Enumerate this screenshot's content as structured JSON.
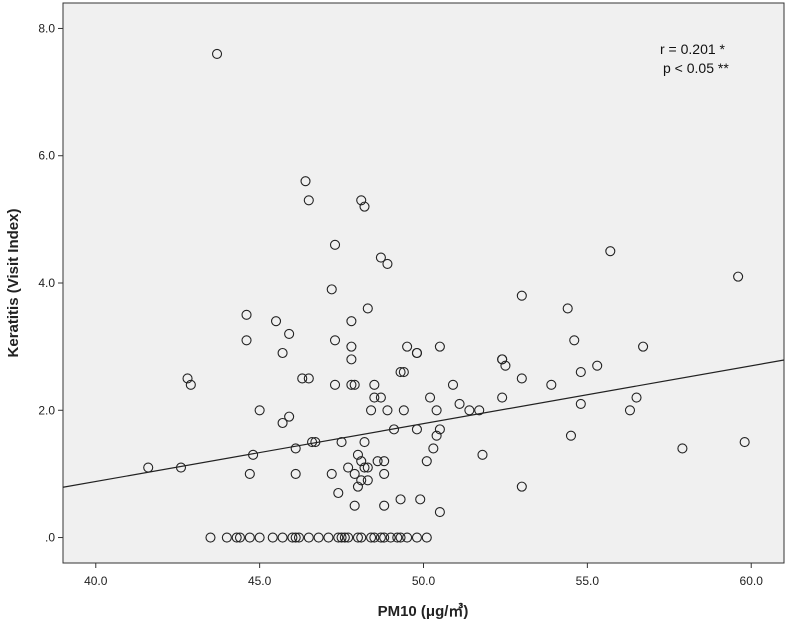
{
  "chart_data": {
    "type": "scatter",
    "title": "",
    "xlabel": "PM10 (μg/㎥)",
    "ylabel": "Keratitis (Visit Index)",
    "xlim": [
      39.0,
      61.0
    ],
    "ylim": [
      -0.4,
      8.4
    ],
    "xticks": [
      40.0,
      45.0,
      50.0,
      55.0,
      60.0
    ],
    "xtick_labels": [
      "40.0",
      "45.0",
      "50.0",
      "55.0",
      "60.0"
    ],
    "yticks": [
      0.0,
      2.0,
      4.0,
      6.0,
      8.0
    ],
    "ytick_labels": [
      ".0",
      "2.0",
      "4.0",
      "6.0",
      "8.0"
    ],
    "grid": false,
    "annotations": [
      "r = 0.201 *",
      "p < 0.05 **"
    ],
    "fit_line": {
      "x": [
        39.0,
        61.0
      ],
      "y": [
        0.79,
        2.79
      ]
    },
    "points": [
      [
        43.7,
        7.6
      ],
      [
        46.4,
        5.6
      ],
      [
        46.5,
        5.3
      ],
      [
        48.1,
        5.3
      ],
      [
        48.2,
        5.2
      ],
      [
        47.3,
        4.6
      ],
      [
        48.7,
        4.4
      ],
      [
        48.9,
        4.3
      ],
      [
        55.7,
        4.5
      ],
      [
        59.6,
        4.1
      ],
      [
        47.2,
        3.9
      ],
      [
        53.0,
        3.8
      ],
      [
        48.3,
        3.6
      ],
      [
        54.4,
        3.6
      ],
      [
        44.6,
        3.5
      ],
      [
        45.5,
        3.4
      ],
      [
        47.8,
        3.4
      ],
      [
        45.9,
        3.2
      ],
      [
        44.6,
        3.1
      ],
      [
        47.3,
        3.1
      ],
      [
        54.6,
        3.1
      ],
      [
        49.5,
        3.0
      ],
      [
        50.5,
        3.0
      ],
      [
        56.7,
        3.0
      ],
      [
        47.8,
        3.0
      ],
      [
        45.7,
        2.9
      ],
      [
        49.8,
        2.9
      ],
      [
        49.8,
        2.9
      ],
      [
        47.8,
        2.8
      ],
      [
        52.4,
        2.8
      ],
      [
        52.4,
        2.8
      ],
      [
        52.5,
        2.7
      ],
      [
        55.3,
        2.7
      ],
      [
        49.3,
        2.6
      ],
      [
        49.4,
        2.6
      ],
      [
        54.8,
        2.6
      ],
      [
        42.8,
        2.5
      ],
      [
        46.3,
        2.5
      ],
      [
        46.5,
        2.5
      ],
      [
        53.0,
        2.5
      ],
      [
        42.9,
        2.4
      ],
      [
        47.3,
        2.4
      ],
      [
        47.8,
        2.4
      ],
      [
        47.9,
        2.4
      ],
      [
        48.5,
        2.4
      ],
      [
        50.9,
        2.4
      ],
      [
        53.9,
        2.4
      ],
      [
        48.5,
        2.2
      ],
      [
        48.7,
        2.2
      ],
      [
        50.2,
        2.2
      ],
      [
        52.4,
        2.2
      ],
      [
        56.5,
        2.2
      ],
      [
        45.0,
        2.0
      ],
      [
        48.4,
        2.0
      ],
      [
        48.9,
        2.0
      ],
      [
        49.4,
        2.0
      ],
      [
        50.4,
        2.0
      ],
      [
        51.4,
        2.0
      ],
      [
        51.7,
        2.0
      ],
      [
        56.3,
        2.0
      ],
      [
        51.1,
        2.1
      ],
      [
        54.8,
        2.1
      ],
      [
        45.9,
        1.9
      ],
      [
        45.7,
        1.8
      ],
      [
        49.1,
        1.7
      ],
      [
        50.5,
        1.7
      ],
      [
        49.8,
        1.7
      ],
      [
        46.6,
        1.5
      ],
      [
        46.7,
        1.5
      ],
      [
        47.5,
        1.5
      ],
      [
        48.2,
        1.5
      ],
      [
        50.4,
        1.6
      ],
      [
        54.5,
        1.6
      ],
      [
        59.8,
        1.5
      ],
      [
        46.1,
        1.4
      ],
      [
        50.3,
        1.4
      ],
      [
        57.9,
        1.4
      ],
      [
        44.8,
        1.3
      ],
      [
        48.0,
        1.3
      ],
      [
        51.8,
        1.3
      ],
      [
        48.1,
        1.2
      ],
      [
        48.6,
        1.2
      ],
      [
        48.8,
        1.2
      ],
      [
        50.1,
        1.2
      ],
      [
        41.6,
        1.1
      ],
      [
        42.6,
        1.1
      ],
      [
        47.7,
        1.1
      ],
      [
        48.2,
        1.1
      ],
      [
        48.3,
        1.1
      ],
      [
        44.7,
        1.0
      ],
      [
        46.1,
        1.0
      ],
      [
        47.2,
        1.0
      ],
      [
        47.9,
        1.0
      ],
      [
        48.8,
        1.0
      ],
      [
        48.1,
        0.9
      ],
      [
        48.3,
        0.9
      ],
      [
        48.0,
        0.8
      ],
      [
        53.0,
        0.8
      ],
      [
        47.4,
        0.7
      ],
      [
        49.3,
        0.6
      ],
      [
        49.9,
        0.6
      ],
      [
        47.9,
        0.5
      ],
      [
        48.8,
        0.5
      ],
      [
        50.5,
        0.4
      ],
      [
        43.5,
        0.0
      ],
      [
        44.0,
        0.0
      ],
      [
        44.3,
        0.0
      ],
      [
        44.4,
        0.0
      ],
      [
        44.7,
        0.0
      ],
      [
        45.0,
        0.0
      ],
      [
        45.4,
        0.0
      ],
      [
        45.7,
        0.0
      ],
      [
        46.0,
        0.0
      ],
      [
        46.1,
        0.0
      ],
      [
        46.2,
        0.0
      ],
      [
        46.5,
        0.0
      ],
      [
        46.8,
        0.0
      ],
      [
        47.1,
        0.0
      ],
      [
        47.4,
        0.0
      ],
      [
        47.5,
        0.0
      ],
      [
        47.6,
        0.0
      ],
      [
        47.7,
        0.0
      ],
      [
        48.0,
        0.0
      ],
      [
        48.1,
        0.0
      ],
      [
        48.4,
        0.0
      ],
      [
        48.5,
        0.0
      ],
      [
        48.7,
        0.0
      ],
      [
        48.8,
        0.0
      ],
      [
        49.0,
        0.0
      ],
      [
        49.2,
        0.0
      ],
      [
        49.3,
        0.0
      ],
      [
        49.5,
        0.0
      ],
      [
        49.8,
        0.0
      ],
      [
        50.1,
        0.0
      ]
    ]
  }
}
